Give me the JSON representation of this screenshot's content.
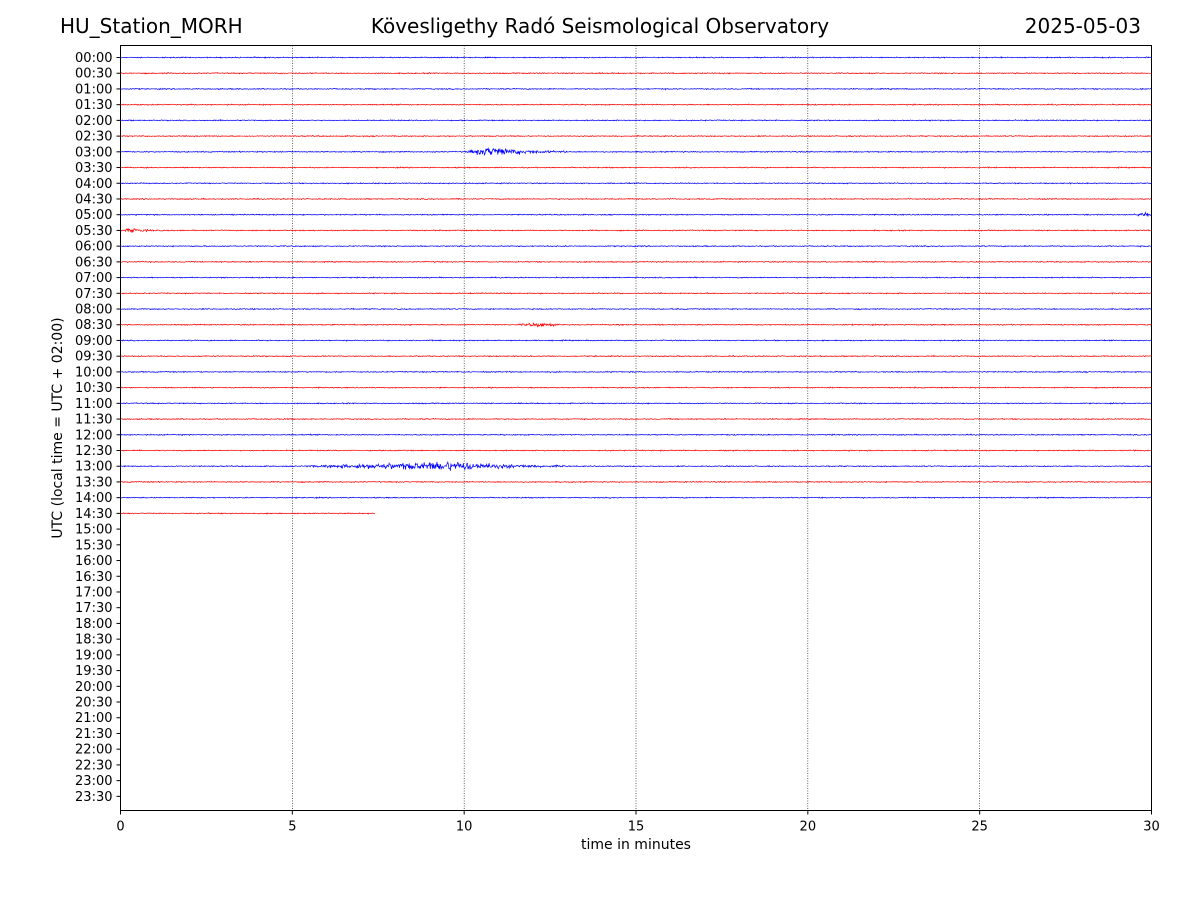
{
  "header": {
    "station": "HU_Station_MORH",
    "title": "Kövesligethy Radó Seismological Observatory",
    "date": "2025-05-03"
  },
  "chart_data": {
    "type": "line",
    "title": "Kövesligethy Radó Seismological Observatory",
    "xlabel": "time in minutes",
    "ylabel": "UTC (local time = UTC + 02:00)",
    "xlim": [
      0,
      30
    ],
    "xticks": [
      0,
      5,
      10,
      15,
      20,
      25,
      30
    ],
    "vertical_grid_at": [
      5,
      10,
      15,
      20,
      25
    ],
    "row_labels": [
      "00:00",
      "00:30",
      "01:00",
      "01:30",
      "02:00",
      "02:30",
      "03:00",
      "03:30",
      "04:00",
      "04:30",
      "05:00",
      "05:30",
      "06:00",
      "06:30",
      "07:00",
      "07:30",
      "08:00",
      "08:30",
      "09:00",
      "09:30",
      "10:00",
      "10:30",
      "11:00",
      "11:30",
      "12:00",
      "12:30",
      "13:00",
      "13:30",
      "14:00",
      "14:30",
      "15:00",
      "15:30",
      "16:00",
      "16:30",
      "17:00",
      "17:30",
      "18:00",
      "18:30",
      "19:00",
      "19:30",
      "20:00",
      "20:30",
      "21:00",
      "21:30",
      "22:00",
      "22:30",
      "23:00",
      "23:30"
    ],
    "row_colors": [
      "#0000ff",
      "#ff0000"
    ],
    "traces_recorded": 30,
    "last_trace_end_minutes": 7.4,
    "events": [
      {
        "row": "03:00",
        "start_min": 10.0,
        "peak_min": 10.8,
        "end_min": 13.0,
        "amplitude": "moderate"
      },
      {
        "row": "13:00",
        "start_min": 5.15,
        "peak_min": 9.8,
        "end_min": 13.0,
        "amplitude": "moderate"
      },
      {
        "row": "05:30",
        "start_min": 0.0,
        "peak_min": 0.3,
        "end_min": 1.2,
        "amplitude": "small"
      },
      {
        "row": "08:30",
        "start_min": 11.5,
        "peak_min": 12.2,
        "end_min": 13.0,
        "amplitude": "small"
      },
      {
        "row": "05:00",
        "start_min": 29.4,
        "peak_min": 29.8,
        "end_min": 30.0,
        "amplitude": "small"
      }
    ]
  }
}
